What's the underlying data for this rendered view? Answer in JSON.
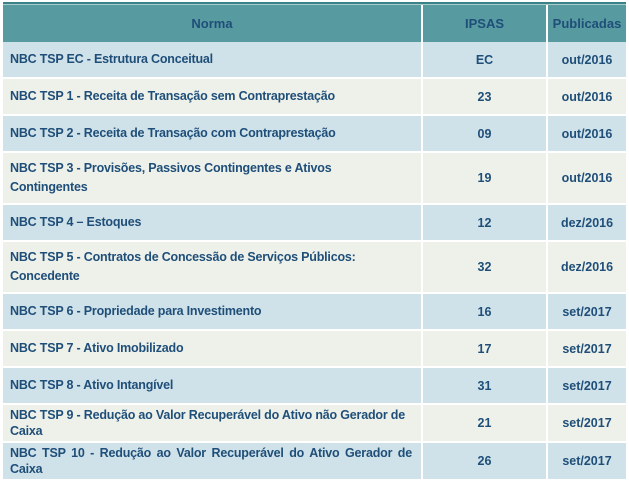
{
  "table": {
    "headers": {
      "norma": "Norma",
      "ipsas": "IPSAS",
      "publicadas": "Publicadas"
    },
    "rows": [
      {
        "norma": "NBC TSP EC - Estrutura Conceitual",
        "ipsas": "EC",
        "publicada": "out/2016"
      },
      {
        "norma": "NBC TSP 1 - Receita de Transação sem Contraprestação",
        "ipsas": "23",
        "publicada": "out/2016"
      },
      {
        "norma": "NBC TSP 2 - Receita de Transação com Contraprestação",
        "ipsas": "09",
        "publicada": "out/2016"
      },
      {
        "norma": "NBC TSP 3 - Provisões, Passivos Contingentes e Ativos Contingentes",
        "ipsas": "19",
        "publicada": "out/2016"
      },
      {
        "norma": "NBC TSP 4 – Estoques",
        "ipsas": "12",
        "publicada": "dez/2016"
      },
      {
        "norma": "NBC TSP 5 - Contratos de Concessão de Serviços Públicos: Concedente",
        "ipsas": "32",
        "publicada": "dez/2016"
      },
      {
        "norma": "NBC TSP 6 - Propriedade para Investimento",
        "ipsas": "16",
        "publicada": "set/2017"
      },
      {
        "norma": "NBC TSP 7 - Ativo Imobilizado",
        "ipsas": "17",
        "publicada": "set/2017"
      },
      {
        "norma": "NBC TSP 8 - Ativo Intangível",
        "ipsas": "31",
        "publicada": "set/2017"
      },
      {
        "norma": "NBC TSP 9 - Redução ao Valor Recuperável do Ativo não Gerador de Caixa",
        "ipsas": "21",
        "publicada": "set/2017"
      },
      {
        "norma": "NBC TSP 10 - Redução ao Valor Recuperável do Ativo Gerador de Caixa",
        "ipsas": "26",
        "publicada": "set/2017"
      }
    ],
    "colors": {
      "header_background": "#579aa0",
      "header_top_border": "#3a8287",
      "row_blue": "#cfe2e9",
      "row_green": "#edf1ea",
      "text": "#1f4e79",
      "cell_separator": "#ffffff"
    }
  }
}
